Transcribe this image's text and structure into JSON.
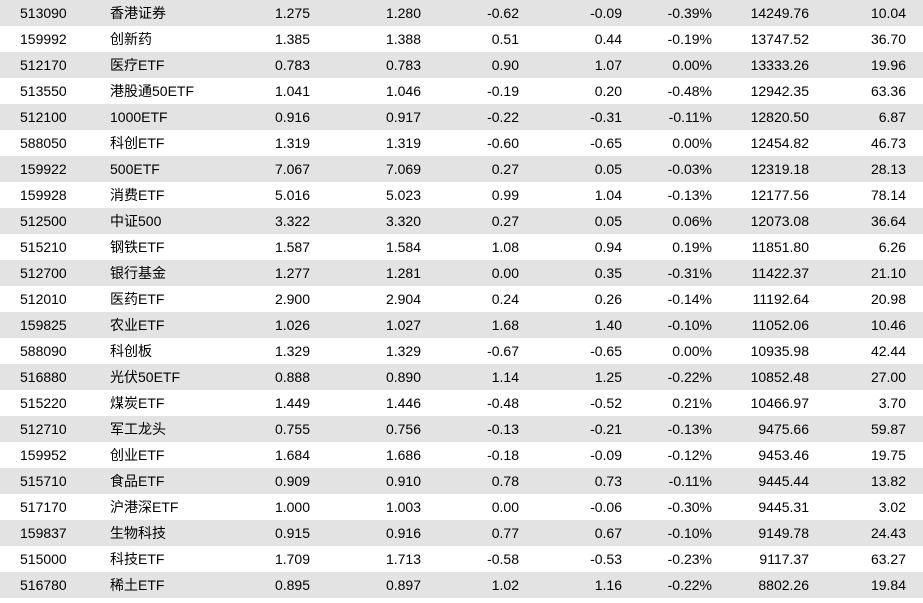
{
  "rows": [
    [
      "513090",
      "香港证券",
      "1.275",
      "1.280",
      "-0.62",
      "-0.09",
      "-0.39%",
      "14249.76",
      "10.04"
    ],
    [
      "159992",
      "创新药",
      "1.385",
      "1.388",
      "0.51",
      "0.44",
      "-0.19%",
      "13747.52",
      "36.70"
    ],
    [
      "512170",
      "医疗ETF",
      "0.783",
      "0.783",
      "0.90",
      "1.07",
      "0.00%",
      "13333.26",
      "19.96"
    ],
    [
      "513550",
      "港股通50ETF",
      "1.041",
      "1.046",
      "-0.19",
      "0.20",
      "-0.48%",
      "12942.35",
      "63.36"
    ],
    [
      "512100",
      "1000ETF",
      "0.916",
      "0.917",
      "-0.22",
      "-0.31",
      "-0.11%",
      "12820.50",
      "6.87"
    ],
    [
      "588050",
      "科创ETF",
      "1.319",
      "1.319",
      "-0.60",
      "-0.65",
      "0.00%",
      "12454.82",
      "46.73"
    ],
    [
      "159922",
      "500ETF",
      "7.067",
      "7.069",
      "0.27",
      "0.05",
      "-0.03%",
      "12319.18",
      "28.13"
    ],
    [
      "159928",
      "消费ETF",
      "5.016",
      "5.023",
      "0.99",
      "1.04",
      "-0.13%",
      "12177.56",
      "78.14"
    ],
    [
      "512500",
      "中证500",
      "3.322",
      "3.320",
      "0.27",
      "0.05",
      "0.06%",
      "12073.08",
      "36.64"
    ],
    [
      "515210",
      "钢铁ETF",
      "1.587",
      "1.584",
      "1.08",
      "0.94",
      "0.19%",
      "11851.80",
      "6.26"
    ],
    [
      "512700",
      "银行基金",
      "1.277",
      "1.281",
      "0.00",
      "0.35",
      "-0.31%",
      "11422.37",
      "21.10"
    ],
    [
      "512010",
      "医药ETF",
      "2.900",
      "2.904",
      "0.24",
      "0.26",
      "-0.14%",
      "11192.64",
      "20.98"
    ],
    [
      "159825",
      "农业ETF",
      "1.026",
      "1.027",
      "1.68",
      "1.40",
      "-0.10%",
      "11052.06",
      "10.46"
    ],
    [
      "588090",
      "科创板",
      "1.329",
      "1.329",
      "-0.67",
      "-0.65",
      "0.00%",
      "10935.98",
      "42.44"
    ],
    [
      "516880",
      "光伏50ETF",
      "0.888",
      "0.890",
      "1.14",
      "1.25",
      "-0.22%",
      "10852.48",
      "27.00"
    ],
    [
      "515220",
      "煤炭ETF",
      "1.449",
      "1.446",
      "-0.48",
      "-0.52",
      "0.21%",
      "10466.97",
      "3.70"
    ],
    [
      "512710",
      "军工龙头",
      "0.755",
      "0.756",
      "-0.13",
      "-0.21",
      "-0.13%",
      "9475.66",
      "59.87"
    ],
    [
      "159952",
      "创业ETF",
      "1.684",
      "1.686",
      "-0.18",
      "-0.09",
      "-0.12%",
      "9453.46",
      "19.75"
    ],
    [
      "515710",
      "食品ETF",
      "0.909",
      "0.910",
      "0.78",
      "0.73",
      "-0.11%",
      "9445.44",
      "13.82"
    ],
    [
      "517170",
      "沪港深ETF",
      "1.000",
      "1.003",
      "0.00",
      "-0.06",
      "-0.30%",
      "9445.31",
      "3.02"
    ],
    [
      "159837",
      "生物科技",
      "0.915",
      "0.916",
      "0.77",
      "0.67",
      "-0.10%",
      "9149.78",
      "24.43"
    ],
    [
      "515000",
      "科技ETF",
      "1.709",
      "1.713",
      "-0.58",
      "-0.53",
      "-0.23%",
      "9117.37",
      "63.27"
    ],
    [
      "516780",
      "稀土ETF",
      "0.895",
      "0.897",
      "1.02",
      "1.16",
      "-0.22%",
      "8802.26",
      "19.84"
    ]
  ],
  "colors": {
    "shaded_row": "#e3e3e3",
    "plain_row": "#ffffff",
    "text": "#000000"
  }
}
